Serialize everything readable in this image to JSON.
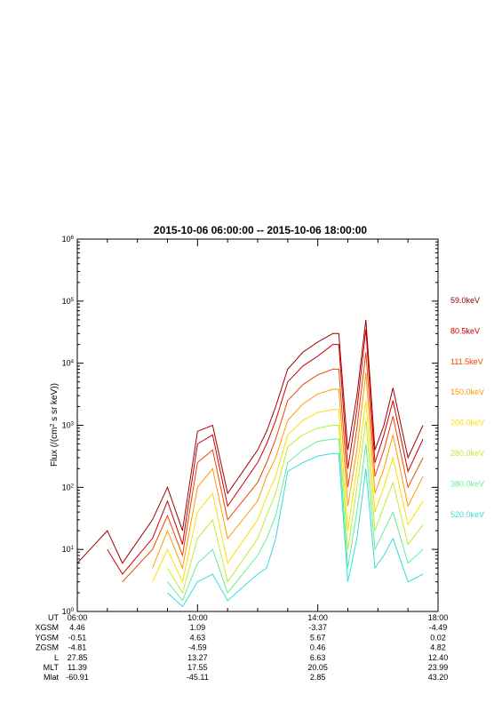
{
  "chart_data": {
    "type": "line",
    "title": "2015-10-06 06:00:00 -- 2015-10-06 18:00:00",
    "ylabel_prefix": "Flux (/(cm",
    "ylabel_sup": "2",
    "ylabel_suffix": " s sr keV))",
    "xlim_hours": [
      6,
      18
    ],
    "ylim": [
      1,
      1000000
    ],
    "yscale": "log",
    "y_ticks": [
      {
        "exp": 0,
        "base": "10",
        "sup": "0"
      },
      {
        "exp": 1,
        "base": "10",
        "sup": "1"
      },
      {
        "exp": 2,
        "base": "10",
        "sup": "2"
      },
      {
        "exp": 3,
        "base": "10",
        "sup": "3"
      },
      {
        "exp": 4,
        "base": "10",
        "sup": "4"
      },
      {
        "exp": 5,
        "base": "10",
        "sup": "5"
      },
      {
        "exp": 6,
        "base": "10",
        "sup": "6"
      }
    ],
    "x": [
      6.0,
      7.0,
      7.5,
      8.5,
      9.0,
      9.5,
      10.0,
      10.5,
      11.0,
      12.0,
      12.3,
      12.6,
      13.0,
      13.5,
      14.0,
      14.5,
      14.7,
      15.0,
      15.3,
      15.6,
      15.9,
      16.2,
      16.5,
      17.0,
      17.5,
      18.0
    ],
    "series": [
      {
        "name": "59.0keV",
        "color": "#9b0000",
        "values": [
          6,
          20,
          6,
          30,
          100,
          20,
          800,
          1000,
          80,
          400,
          800,
          2000,
          8000,
          15000,
          22000,
          30000,
          30000,
          400,
          3000,
          50000,
          400,
          1000,
          4000,
          300,
          1000,
          null
        ]
      },
      {
        "name": "80.5keV",
        "color": "#cc0000",
        "values": [
          null,
          10,
          4,
          15,
          60,
          12,
          500,
          700,
          50,
          250,
          500,
          1200,
          5000,
          9000,
          13000,
          20000,
          20000,
          200,
          1800,
          35000,
          250,
          700,
          2500,
          180,
          600,
          null
        ]
      },
      {
        "name": "111.5keV",
        "color": "#ee4400",
        "values": [
          null,
          null,
          3,
          10,
          35,
          8,
          250,
          400,
          30,
          120,
          250,
          600,
          2500,
          4500,
          6500,
          8000,
          8000,
          100,
          900,
          15000,
          150,
          400,
          1400,
          100,
          300,
          null
        ]
      },
      {
        "name": "150.0keV",
        "color": "#ff9900",
        "values": [
          null,
          null,
          null,
          5,
          20,
          5,
          100,
          200,
          15,
          60,
          150,
          300,
          1200,
          2200,
          3200,
          3800,
          3800,
          50,
          400,
          7000,
          80,
          200,
          700,
          50,
          150,
          null
        ]
      },
      {
        "name": "206.0keV",
        "color": "#ffdd00",
        "values": [
          null,
          null,
          null,
          3,
          10,
          3,
          40,
          80,
          6,
          30,
          70,
          150,
          700,
          1200,
          1600,
          1800,
          1800,
          20,
          200,
          2500,
          40,
          100,
          300,
          25,
          60,
          null
        ]
      },
      {
        "name": "280.0keV",
        "color": "#bbee33",
        "values": [
          null,
          null,
          null,
          null,
          5,
          2,
          15,
          30,
          3,
          15,
          35,
          80,
          450,
          700,
          900,
          1000,
          1000,
          10,
          100,
          1200,
          20,
          50,
          120,
          12,
          25,
          null
        ]
      },
      {
        "name": "380.0keV",
        "color": "#66ee99",
        "values": [
          null,
          null,
          null,
          null,
          3,
          1.5,
          6,
          10,
          2,
          8,
          15,
          35,
          250,
          400,
          550,
          600,
          600,
          5,
          40,
          500,
          10,
          20,
          40,
          6,
          10,
          null
        ]
      },
      {
        "name": "520.0keV",
        "color": "#33dddd",
        "values": [
          null,
          null,
          null,
          null,
          2,
          1.2,
          3,
          4,
          1.5,
          4,
          5,
          15,
          180,
          250,
          320,
          350,
          350,
          3,
          15,
          200,
          5,
          8,
          15,
          3,
          4,
          null
        ]
      }
    ],
    "ephemeris": {
      "labels": [
        "UT",
        "XGSM",
        "YGSM",
        "ZGSM",
        "L",
        "MLT",
        "Mlat"
      ],
      "columns": [
        {
          "hour": 6,
          "values": [
            "06:00",
            "4.46",
            "-0.51",
            "-4.81",
            "27.85",
            "11.39",
            "-60.91"
          ]
        },
        {
          "hour": 10,
          "values": [
            "10:00",
            "1.09",
            "4.63",
            "-4.59",
            "13.27",
            "17.55",
            "-45.11"
          ]
        },
        {
          "hour": 14,
          "values": [
            "14:00",
            "-3.37",
            "5.67",
            "0.46",
            "6.63",
            "20.05",
            "2.85"
          ]
        },
        {
          "hour": 18,
          "values": [
            "18:00",
            "-4.49",
            "0.02",
            "4.82",
            "12.40",
            "23.99",
            "43.20"
          ]
        }
      ]
    }
  }
}
